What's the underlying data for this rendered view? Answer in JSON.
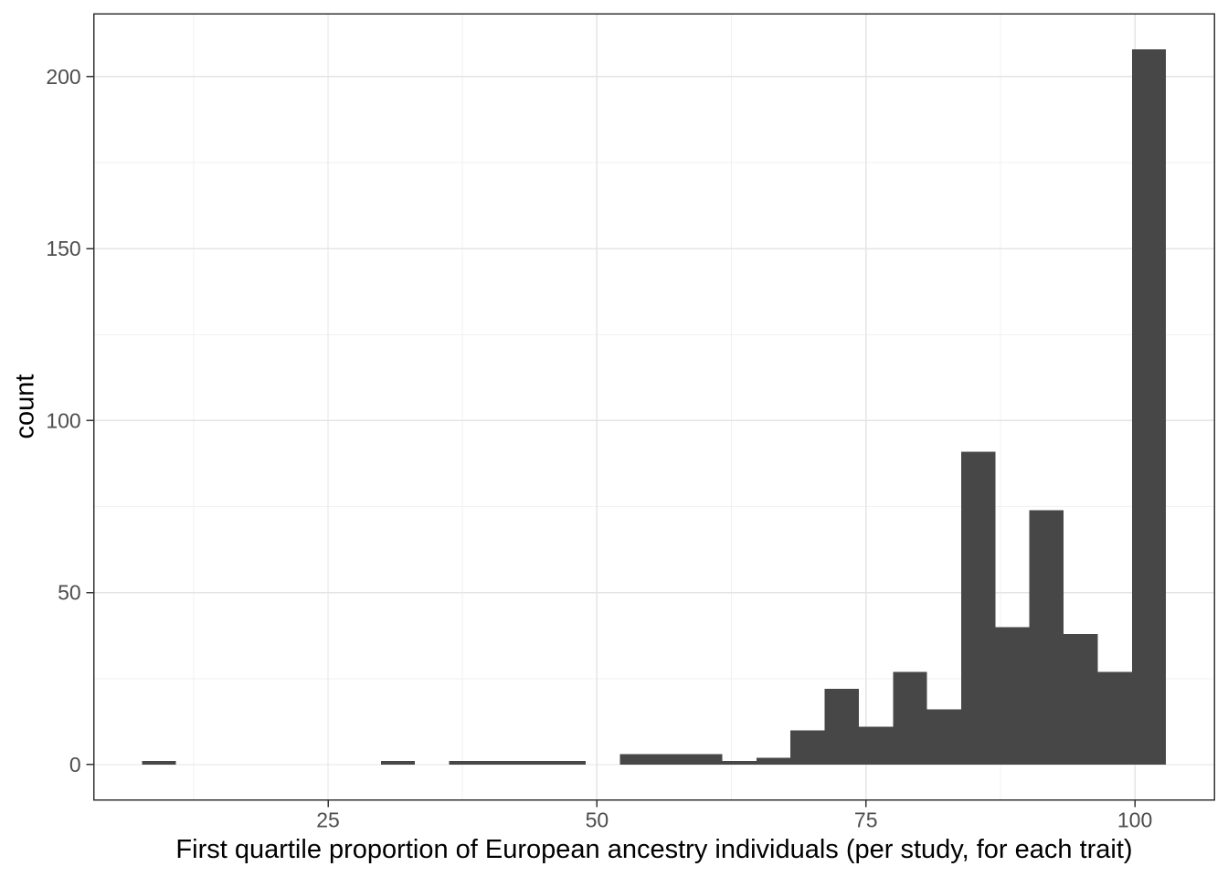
{
  "figure": {
    "background": "#FFFFFF"
  },
  "chart_data": {
    "type": "bar",
    "subtype": "histogram",
    "title": "",
    "xlabel": "First quartile proportion of European ancestry individuals (per study, for each trait)",
    "ylabel": "count",
    "bin_start": 7.7,
    "bin_width": 3.1733,
    "counts": [
      1,
      0,
      0,
      0,
      0,
      0,
      0,
      1,
      0,
      1,
      1,
      1,
      1,
      0,
      3,
      3,
      3,
      1,
      2,
      10,
      22,
      11,
      27,
      16,
      91,
      40,
      74,
      38,
      27,
      208
    ],
    "total_count": 582,
    "x_major_ticks": [
      25,
      50,
      75,
      100
    ],
    "x_minor_ticks": [
      12.5,
      37.5,
      62.5,
      87.5
    ],
    "y_major_ticks": [
      0,
      50,
      100,
      150,
      200
    ],
    "y_minor_ticks": [
      25,
      75,
      125,
      175
    ],
    "xlim": [
      3.23,
      107.41
    ],
    "ylim": [
      -10.23,
      218.3
    ],
    "grid": true,
    "legend": "none",
    "colors": {
      "bar_fill": "#474747",
      "panel_background": "#FFFFFF",
      "panel_border": "#333333",
      "grid_major": "#E4E4E4",
      "grid_minor": "#F1F1F1",
      "tick_mark": "#333333",
      "tick_label": "#4D4D4D",
      "axis_title": "#000000"
    }
  }
}
